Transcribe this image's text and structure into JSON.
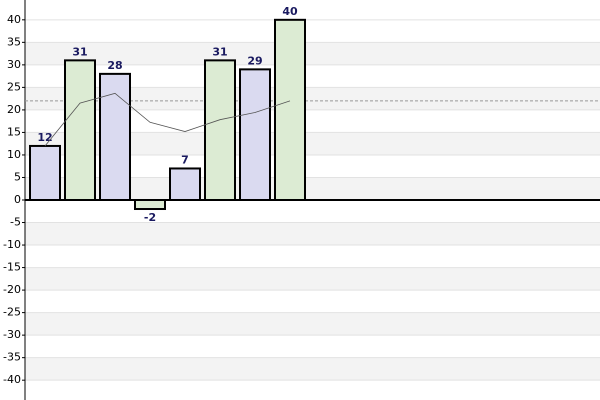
{
  "chart_data": {
    "type": "bar",
    "categories": [
      null,
      null,
      null,
      null,
      null,
      null,
      null,
      null
    ],
    "values": [
      12,
      31,
      28,
      -2,
      7,
      31,
      29,
      40
    ],
    "colors": [
      "#dadaf0",
      "#dcebd3",
      "#dadaf0",
      "#dcebd3",
      "#dadaf0",
      "#dcebd3",
      "#dadaf0",
      "#dcebd3"
    ],
    "line_values": [
      12,
      21.5,
      23.67,
      17.25,
      15.2,
      17.83,
      19.43,
      22
    ],
    "line_color": "#555555",
    "average": 22,
    "average_color": "#999999",
    "ylim": [
      -44.4,
      44.4
    ],
    "yticks": [
      -40,
      -35,
      -30,
      -25,
      -20,
      -15,
      -10,
      -5,
      0,
      5,
      10,
      15,
      20,
      25,
      30,
      35,
      40
    ],
    "grid": true
  }
}
